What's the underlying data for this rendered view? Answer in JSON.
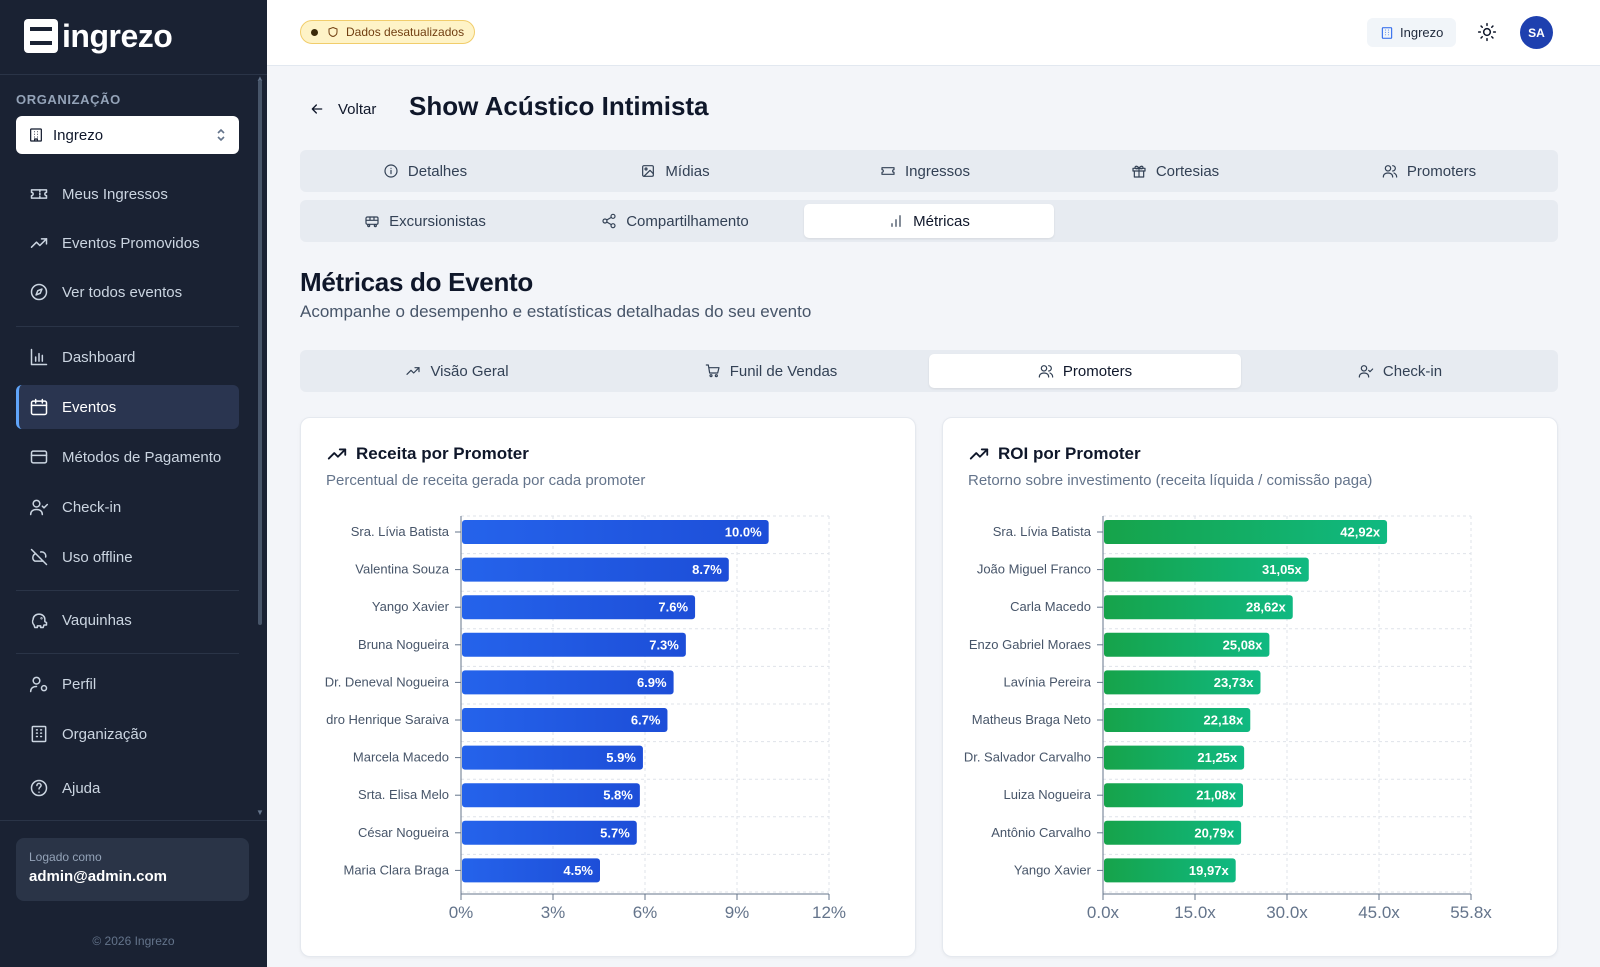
{
  "sidebar": {
    "brand": "ingrezo",
    "org_label": "ORGANIZAÇÃO",
    "org_selected": "Ingrezo",
    "items": [
      {
        "label": "Meus Ingressos",
        "icon": "ticket-icon"
      },
      {
        "label": "Eventos Promovidos",
        "icon": "trending-up-icon"
      },
      {
        "label": "Ver todos eventos",
        "icon": "compass-icon"
      },
      {
        "label": "Dashboard",
        "icon": "bar-chart-icon"
      },
      {
        "label": "Eventos",
        "icon": "calendar-icon"
      },
      {
        "label": "Métodos de Pagamento",
        "icon": "credit-card-icon"
      },
      {
        "label": "Check-in",
        "icon": "user-check-icon"
      },
      {
        "label": "Uso offline",
        "icon": "cloud-off-icon"
      },
      {
        "label": "Vaquinhas",
        "icon": "piggy-bank-icon"
      },
      {
        "label": "Perfil",
        "icon": "user-cog-icon"
      },
      {
        "label": "Organização",
        "icon": "building-icon"
      },
      {
        "label": "Ajuda",
        "icon": "help-circle-icon"
      }
    ],
    "logged_label": "Logado como",
    "logged_email": "admin@admin.com",
    "copyright": "© 2026 Ingrezo"
  },
  "topbar": {
    "badge": "Dados desatualizados",
    "org_chip": "Ingrezo",
    "avatar": "SA"
  },
  "header": {
    "back_label": "Voltar",
    "title": "Show Acústico Intimista"
  },
  "tabs": {
    "row1": [
      "Detalhes",
      "Mídias",
      "Ingressos",
      "Cortesias",
      "Promoters"
    ],
    "row2": [
      "Excursionistas",
      "Compartilhamento",
      "Métricas"
    ],
    "active": "Métricas"
  },
  "section": {
    "title": "Métricas do Evento",
    "subtitle": "Acompanhe o desempenho e estatísticas detalhadas do seu evento"
  },
  "metric_tabs": {
    "items": [
      "Visão Geral",
      "Funil de Vendas",
      "Promoters",
      "Check-in"
    ],
    "active": "Promoters"
  },
  "colors": {
    "accent_blue": "#2563eb",
    "accent_green": "#16a34a",
    "sidebar_bg": "#1a2233"
  },
  "chart_data": [
    {
      "type": "bar",
      "orientation": "horizontal",
      "title": "Receita por Promoter",
      "subtitle": "Percentual de receita gerada por cada promoter",
      "categories": [
        "Sra. Lívia Batista",
        "Valentina Souza",
        "Yango Xavier",
        "Bruna Nogueira",
        "Dr. Deneval Nogueira",
        "dro Henrique Saraiva",
        "Marcela Macedo",
        "Srta. Elisa Melo",
        "César Nogueira",
        "Maria Clara Braga"
      ],
      "values": [
        10.0,
        8.7,
        7.6,
        7.3,
        6.9,
        6.7,
        5.9,
        5.8,
        5.7,
        4.5
      ],
      "value_labels": [
        "10.0%",
        "8.7%",
        "7.6%",
        "7.3%",
        "6.9%",
        "6.7%",
        "5.9%",
        "5.8%",
        "5.7%",
        "4.5%"
      ],
      "x_ticks": [
        "0%",
        "3%",
        "6%",
        "9%",
        "12%"
      ],
      "xlim": [
        0,
        12
      ],
      "grid": true,
      "color": "#2563eb"
    },
    {
      "type": "bar",
      "orientation": "horizontal",
      "title": "ROI por Promoter",
      "subtitle": "Retorno sobre investimento (receita líquida / comissão paga)",
      "categories": [
        "Sra. Lívia Batista",
        "João Miguel Franco",
        "Carla Macedo",
        "Enzo Gabriel Moraes",
        "Lavínia Pereira",
        "Matheus Braga Neto",
        "Dr. Salvador Carvalho",
        "Luiza Nogueira",
        "Antônio Carvalho",
        "Yango Xavier"
      ],
      "values": [
        42.92,
        31.05,
        28.62,
        25.08,
        23.73,
        22.18,
        21.25,
        21.08,
        20.79,
        19.97
      ],
      "value_labels": [
        "42,92x",
        "31,05x",
        "28,62x",
        "25,08x",
        "23,73x",
        "22,18x",
        "21,25x",
        "21,08x",
        "20,79x",
        "19,97x"
      ],
      "x_ticks": [
        "0.0x",
        "15.0x",
        "30.0x",
        "45.0x",
        "55.8x"
      ],
      "xlim": [
        0,
        55.8
      ],
      "grid": true,
      "color": "#16a34a"
    }
  ]
}
